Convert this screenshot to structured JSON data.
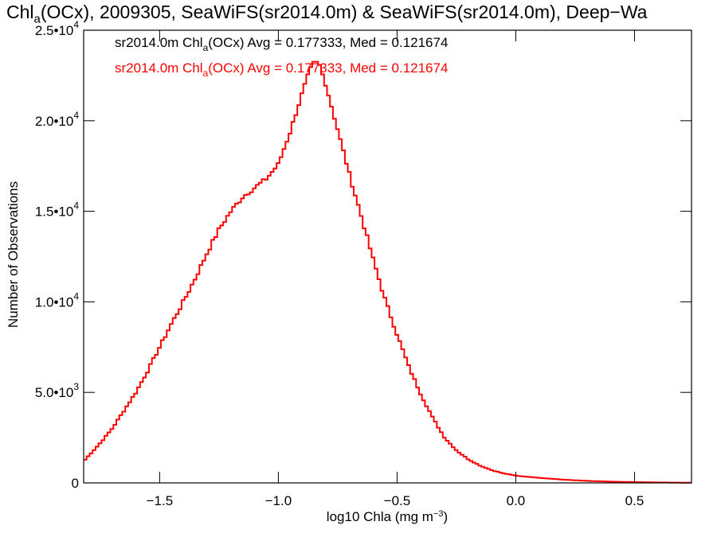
{
  "title": {
    "pre": "Chl",
    "sub": "a",
    "post": "(OCx), 2009305, SeaWiFS(sr2014.0m) & SeaWiFS(sr2014.0m), Deep−Wa"
  },
  "legend": [
    {
      "pre": "sr2014.0m Chl",
      "sub": "a",
      "post": "(OCx) Avg = 0.177333, Med = 0.121674",
      "color": "#000000"
    },
    {
      "pre": "sr2014.0m Chl",
      "sub": "a",
      "post": "(OCx) Avg = 0.177333, Med = 0.121674",
      "color": "#ff0000"
    }
  ],
  "chart_data": {
    "type": "line",
    "style": "histogram-step",
    "xlabel": {
      "pre": "log10 Chla (mg m",
      "sup": "−3",
      "post": ")"
    },
    "ylabel": "Number of Observations",
    "xlim": [
      -1.82,
      0.74
    ],
    "ylim": [
      0,
      25000
    ],
    "xticks": [
      {
        "value": -1.5,
        "label": "−1.5"
      },
      {
        "value": -1.0,
        "label": "−1.0"
      },
      {
        "value": -0.5,
        "label": "−0.5"
      },
      {
        "value": 0.0,
        "label": "0.0"
      },
      {
        "value": 0.5,
        "label": "0.5"
      }
    ],
    "yticks": [
      {
        "value": 0,
        "base": "0",
        "exp": ""
      },
      {
        "value": 5000,
        "base": "5.0•10",
        "exp": "3"
      },
      {
        "value": 10000,
        "base": "1.0•10",
        "exp": "4"
      },
      {
        "value": 15000,
        "base": "1.5•10",
        "exp": "4"
      },
      {
        "value": 20000,
        "base": "2.0•10",
        "exp": "4"
      },
      {
        "value": 25000,
        "base": "2.5•10",
        "exp": "4"
      }
    ],
    "series": [
      {
        "color": "#ff0000",
        "x": [
          -1.82,
          -1.75,
          -1.7,
          -1.65,
          -1.6,
          -1.55,
          -1.5,
          -1.45,
          -1.4,
          -1.35,
          -1.3,
          -1.25,
          -1.2,
          -1.15,
          -1.1,
          -1.05,
          -1.0,
          -0.95,
          -0.9,
          -0.87,
          -0.85,
          -0.83,
          -0.8,
          -0.75,
          -0.7,
          -0.65,
          -0.6,
          -0.55,
          -0.5,
          -0.45,
          -0.4,
          -0.35,
          -0.3,
          -0.25,
          -0.2,
          -0.15,
          -0.1,
          -0.05,
          0.0,
          0.1,
          0.2,
          0.3,
          0.4,
          0.5,
          0.6,
          0.74
        ],
        "y": [
          1200,
          2200,
          3000,
          4000,
          5000,
          6200,
          7500,
          8800,
          10000,
          11300,
          12700,
          14000,
          15000,
          15800,
          16300,
          16800,
          17600,
          19400,
          21500,
          22700,
          23200,
          23200,
          22000,
          19500,
          17000,
          14700,
          12300,
          10100,
          8200,
          6400,
          4900,
          3600,
          2500,
          1800,
          1300,
          950,
          700,
          520,
          400,
          280,
          180,
          110,
          70,
          45,
          25,
          10
        ]
      }
    ]
  }
}
